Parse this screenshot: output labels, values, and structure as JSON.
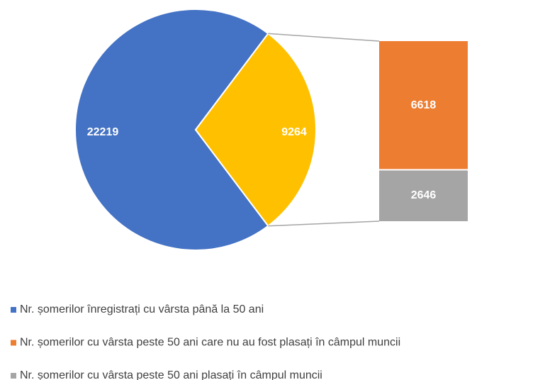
{
  "chart_data": {
    "type": "bar-of-pie",
    "categories": [
      "Nr. șomerilor înregistrați cu vârsta până la 50 ani",
      "Nr. șomerilor cu vârsta peste 50 ani care nu au fost plasați în câmpul muncii",
      "Nr. șomerilor cu vârsta peste 50 ani plasați în câmpul muncii"
    ],
    "values": [
      22219,
      6618,
      2646
    ],
    "colors": [
      "#4472c4",
      "#ed7d31",
      "#a5a5a5"
    ],
    "other_value": 9264,
    "other_color": "#ffc000"
  }
}
